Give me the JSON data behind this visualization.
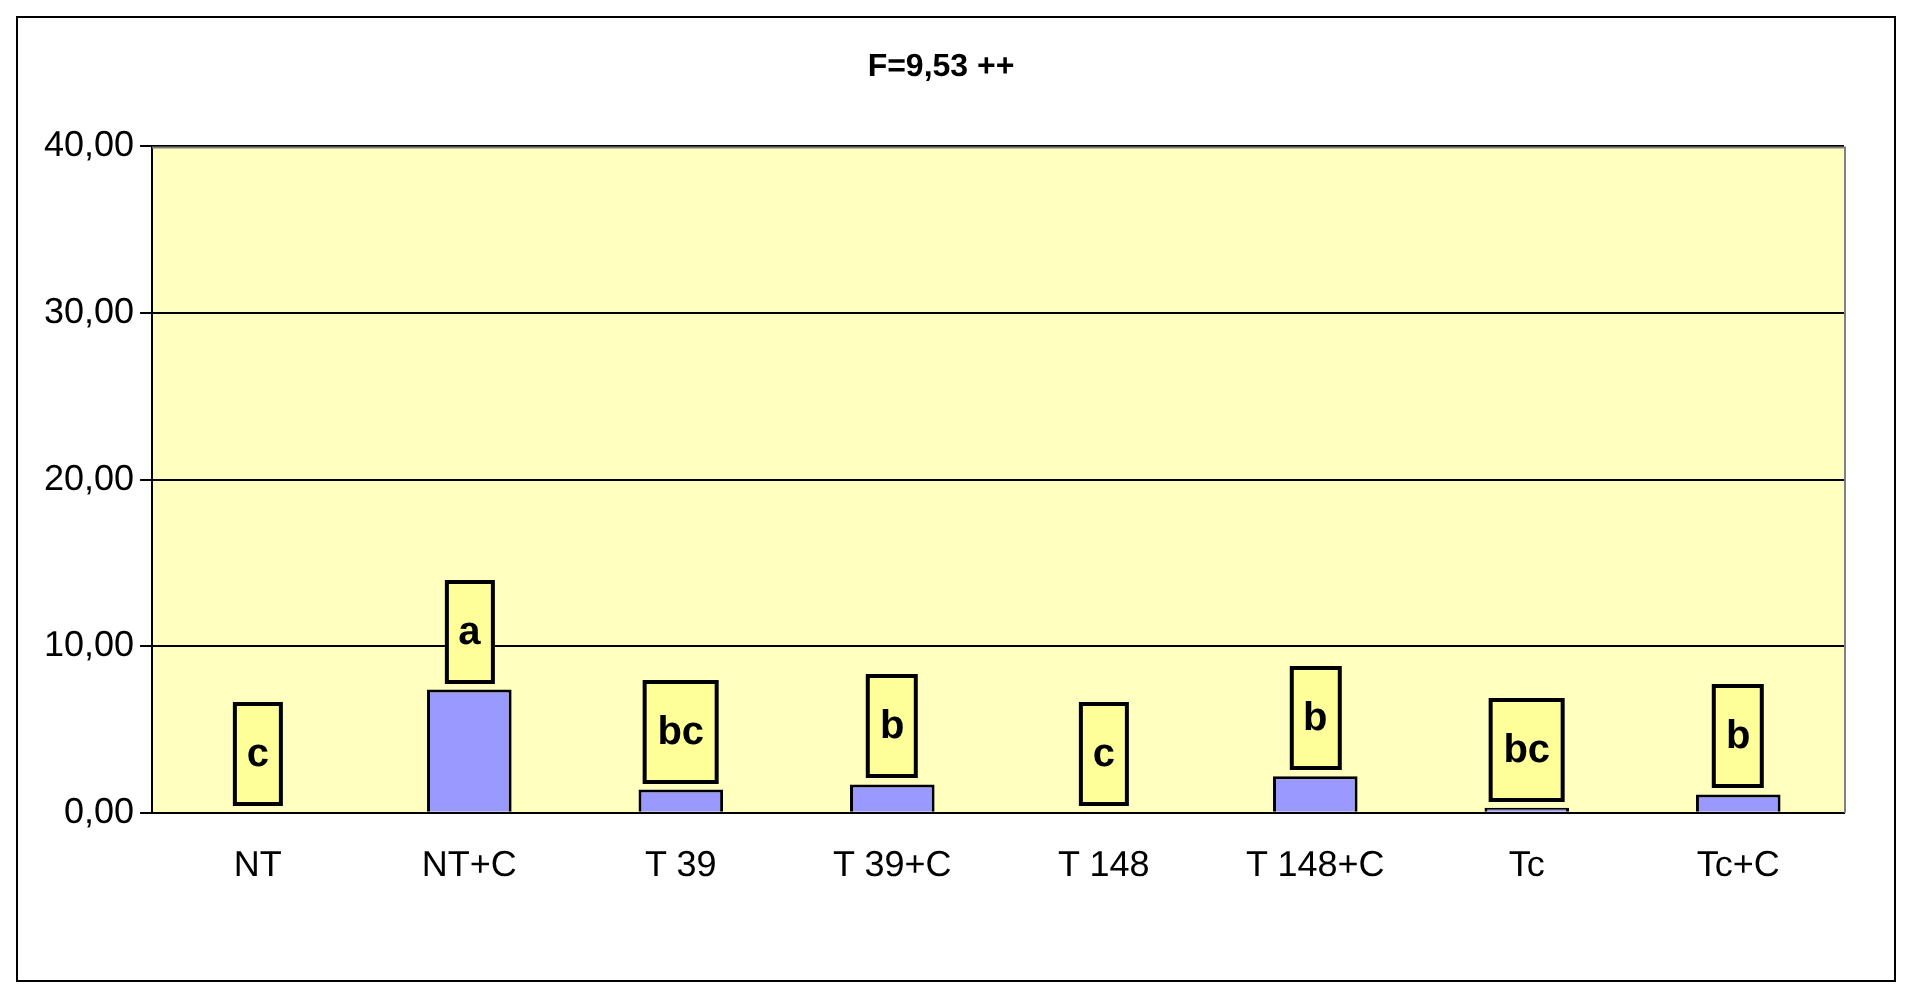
{
  "chart_data": {
    "type": "bar",
    "title": "F=9,53 ++",
    "categories": [
      "NT",
      "NT+C",
      "T 39",
      "T 39+C",
      "T 148",
      "T 148+C",
      "Tc",
      "Tc+C"
    ],
    "series": [
      {
        "color": "#9999ff",
        "values": [
          0,
          7.4,
          1.4,
          1.7,
          0,
          2.2,
          0.3,
          1.1
        ]
      }
    ],
    "ylim": [
      0,
      40
    ],
    "yticks": [
      {
        "value": 0,
        "label": "0,00"
      },
      {
        "value": 10,
        "label": "10,00"
      },
      {
        "value": 20,
        "label": "20,00"
      },
      {
        "value": 30,
        "label": "30,00"
      },
      {
        "value": 40,
        "label": "40,00"
      }
    ],
    "grid": "y",
    "legend": false,
    "annotations": [
      "c",
      "a",
      "bc",
      "b",
      "c",
      "b",
      "bc",
      "b"
    ]
  }
}
